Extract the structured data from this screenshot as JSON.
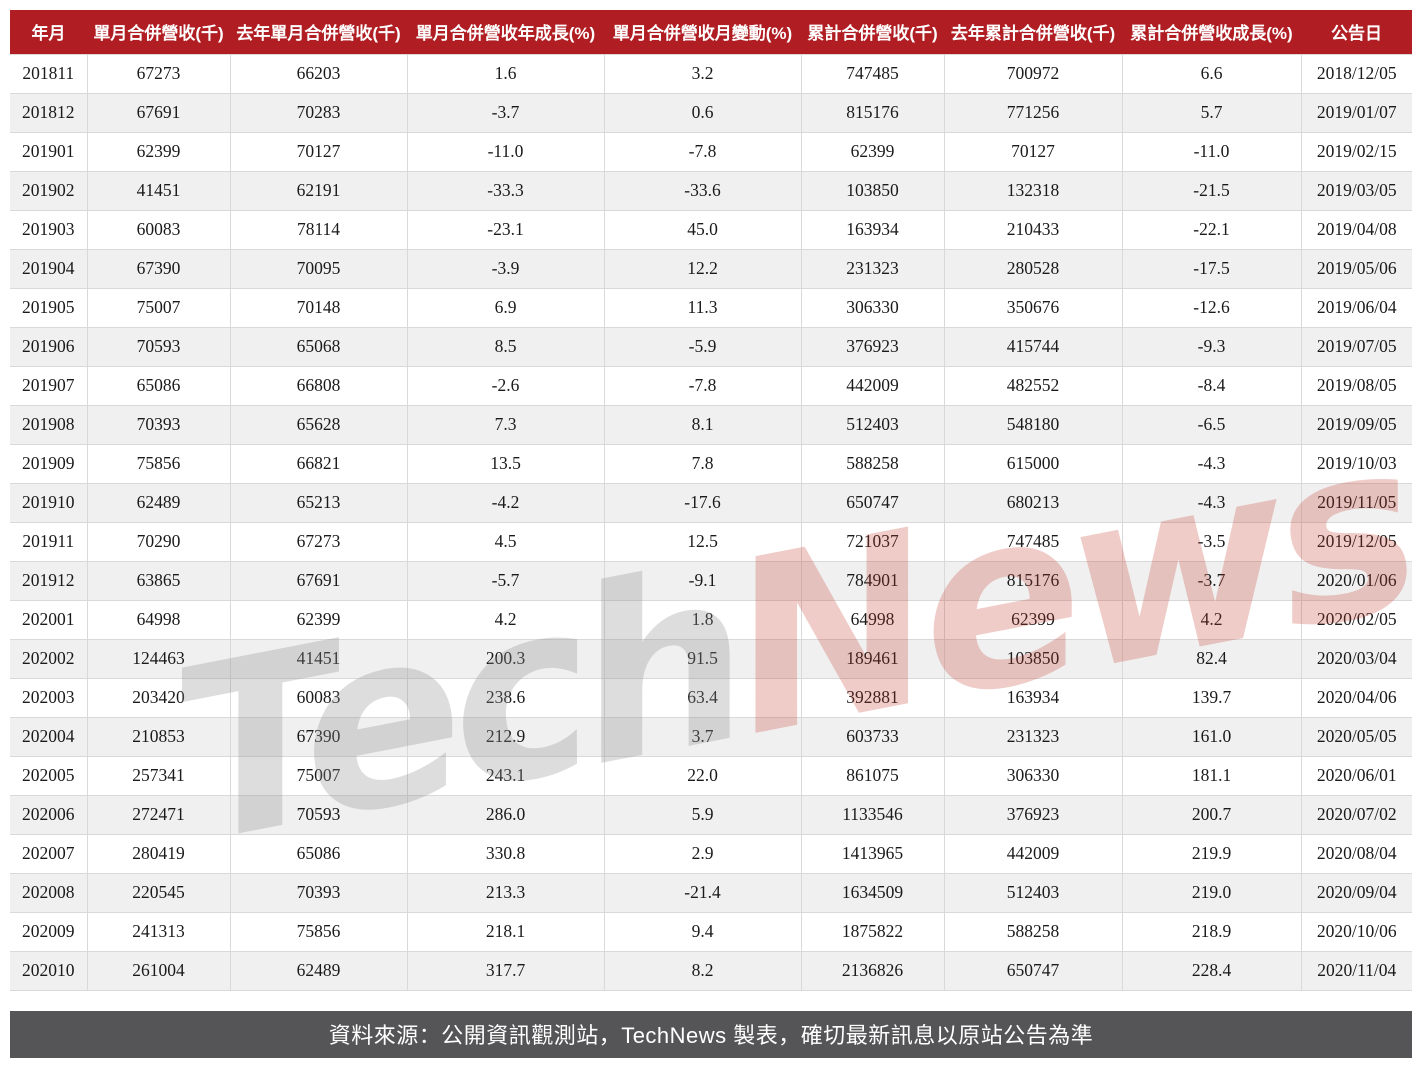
{
  "chart_data": {
    "type": "table",
    "title": "",
    "columns": [
      "年月",
      "單月合併營收(千)",
      "去年單月合併營收(千)",
      "單月合併營收年成長(%)",
      "單月合併營收月變動(%)",
      "累計合併營收(千)",
      "去年累計合併營收(千)",
      "累計合併營收成長(%)",
      "公告日"
    ],
    "rows": [
      [
        "201811",
        "67273",
        "66203",
        "1.6",
        "3.2",
        "747485",
        "700972",
        "6.6",
        "2018/12/05"
      ],
      [
        "201812",
        "67691",
        "70283",
        "-3.7",
        "0.6",
        "815176",
        "771256",
        "5.7",
        "2019/01/07"
      ],
      [
        "201901",
        "62399",
        "70127",
        "-11.0",
        "-7.8",
        "62399",
        "70127",
        "-11.0",
        "2019/02/15"
      ],
      [
        "201902",
        "41451",
        "62191",
        "-33.3",
        "-33.6",
        "103850",
        "132318",
        "-21.5",
        "2019/03/05"
      ],
      [
        "201903",
        "60083",
        "78114",
        "-23.1",
        "45.0",
        "163934",
        "210433",
        "-22.1",
        "2019/04/08"
      ],
      [
        "201904",
        "67390",
        "70095",
        "-3.9",
        "12.2",
        "231323",
        "280528",
        "-17.5",
        "2019/05/06"
      ],
      [
        "201905",
        "75007",
        "70148",
        "6.9",
        "11.3",
        "306330",
        "350676",
        "-12.6",
        "2019/06/04"
      ],
      [
        "201906",
        "70593",
        "65068",
        "8.5",
        "-5.9",
        "376923",
        "415744",
        "-9.3",
        "2019/07/05"
      ],
      [
        "201907",
        "65086",
        "66808",
        "-2.6",
        "-7.8",
        "442009",
        "482552",
        "-8.4",
        "2019/08/05"
      ],
      [
        "201908",
        "70393",
        "65628",
        "7.3",
        "8.1",
        "512403",
        "548180",
        "-6.5",
        "2019/09/05"
      ],
      [
        "201909",
        "75856",
        "66821",
        "13.5",
        "7.8",
        "588258",
        "615000",
        "-4.3",
        "2019/10/03"
      ],
      [
        "201910",
        "62489",
        "65213",
        "-4.2",
        "-17.6",
        "650747",
        "680213",
        "-4.3",
        "2019/11/05"
      ],
      [
        "201911",
        "70290",
        "67273",
        "4.5",
        "12.5",
        "721037",
        "747485",
        "-3.5",
        "2019/12/05"
      ],
      [
        "201912",
        "63865",
        "67691",
        "-5.7",
        "-9.1",
        "784901",
        "815176",
        "-3.7",
        "2020/01/06"
      ],
      [
        "202001",
        "64998",
        "62399",
        "4.2",
        "1.8",
        "64998",
        "62399",
        "4.2",
        "2020/02/05"
      ],
      [
        "202002",
        "124463",
        "41451",
        "200.3",
        "91.5",
        "189461",
        "103850",
        "82.4",
        "2020/03/04"
      ],
      [
        "202003",
        "203420",
        "60083",
        "238.6",
        "63.4",
        "392881",
        "163934",
        "139.7",
        "2020/04/06"
      ],
      [
        "202004",
        "210853",
        "67390",
        "212.9",
        "3.7",
        "603733",
        "231323",
        "161.0",
        "2020/05/05"
      ],
      [
        "202005",
        "257341",
        "75007",
        "243.1",
        "22.0",
        "861075",
        "306330",
        "181.1",
        "2020/06/01"
      ],
      [
        "202006",
        "272471",
        "70593",
        "286.0",
        "5.9",
        "1133546",
        "376923",
        "200.7",
        "2020/07/02"
      ],
      [
        "202007",
        "280419",
        "65086",
        "330.8",
        "2.9",
        "1413965",
        "442009",
        "219.9",
        "2020/08/04"
      ],
      [
        "202008",
        "220545",
        "70393",
        "213.3",
        "-21.4",
        "1634509",
        "512403",
        "219.0",
        "2020/09/04"
      ],
      [
        "202009",
        "241313",
        "75856",
        "218.1",
        "9.4",
        "1875822",
        "588258",
        "218.9",
        "2020/10/06"
      ],
      [
        "202010",
        "261004",
        "62489",
        "317.7",
        "8.2",
        "2136826",
        "650747",
        "228.4",
        "2020/11/04"
      ]
    ],
    "layout_hints": {
      "striped_rows": true,
      "header_position": "top"
    }
  },
  "watermark": {
    "part1": "Tech",
    "part2": "News"
  },
  "footer": {
    "text": "資料來源：公開資訊觀測站，TechNews 製表，確切最新訊息以原站公告為準"
  },
  "colors": {
    "header_bg": "#b01e23",
    "footer_bg": "#555557",
    "row_stripe": "#f0f0f0",
    "border": "#d9d9d9",
    "watermark_gray": "#8f8f8f",
    "watermark_red": "#c0392b"
  }
}
